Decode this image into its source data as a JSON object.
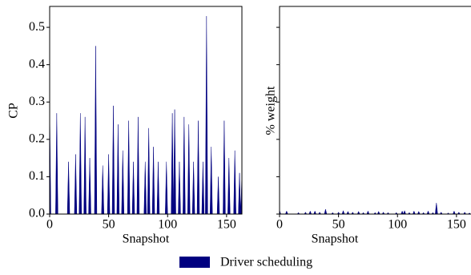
{
  "chart_data": [
    {
      "type": "area",
      "ylabel": "CP",
      "xlabel": "Snapshot",
      "x": [
        0,
        1,
        5,
        6,
        7,
        15,
        16,
        17,
        21,
        22,
        23,
        25,
        26,
        27,
        29,
        30,
        31,
        33,
        34,
        35,
        38,
        39,
        40,
        44,
        45,
        46,
        49,
        50,
        51,
        53,
        54,
        55,
        57,
        58,
        59,
        61,
        62,
        63,
        66,
        67,
        68,
        70,
        71,
        72,
        74,
        75,
        76,
        80,
        81,
        82,
        83,
        84,
        85,
        87,
        88,
        89,
        91,
        92,
        93,
        98,
        99,
        100,
        103,
        104,
        105,
        106,
        107,
        109,
        110,
        111,
        113,
        114,
        115,
        117,
        118,
        119,
        121,
        122,
        123,
        125,
        126,
        127,
        129,
        130,
        131,
        132,
        133,
        134,
        136,
        137,
        138,
        142,
        143,
        144,
        147,
        148,
        149,
        151,
        152,
        153,
        156,
        157,
        158,
        160,
        161,
        162,
        163
      ],
      "series": [
        {
          "name": "Driver scheduling",
          "color": "#000080",
          "values": [
            0.29,
            0,
            0,
            0.27,
            0,
            0,
            0.14,
            0,
            0,
            0.16,
            0,
            0,
            0.27,
            0,
            0,
            0.26,
            0,
            0,
            0.15,
            0,
            0,
            0.45,
            0,
            0,
            0.13,
            0,
            0,
            0.16,
            0,
            0,
            0.29,
            0,
            0,
            0.24,
            0,
            0,
            0.17,
            0,
            0,
            0.25,
            0,
            0,
            0.14,
            0,
            0,
            0.26,
            0,
            0,
            0.14,
            0,
            0,
            0.23,
            0,
            0,
            0.18,
            0,
            0,
            0.14,
            0,
            0,
            0.14,
            0,
            0,
            0.27,
            0,
            0.28,
            0,
            0,
            0.14,
            0,
            0,
            0.26,
            0,
            0,
            0.24,
            0,
            0,
            0.14,
            0,
            0,
            0.25,
            0,
            0,
            0.14,
            0,
            0,
            0.53,
            0,
            0,
            0.18,
            0,
            0,
            0.1,
            0,
            0,
            0.25,
            0,
            0,
            0.15,
            0,
            0,
            0.17,
            0,
            0,
            0.11,
            0,
            0.11
          ]
        }
      ],
      "xlim": [
        0,
        163
      ],
      "xticks": [
        0,
        50,
        100,
        150
      ],
      "ylim": [
        0,
        0.556
      ],
      "yticks": [
        {
          "value": 0,
          "label": "0.0"
        },
        0.1,
        0.2,
        0.3,
        0.4,
        0.5
      ]
    },
    {
      "type": "area",
      "ylabel": "% weight",
      "xlabel": "Snapshot",
      "x": [
        0,
        1,
        5,
        6,
        7,
        15,
        16,
        17,
        21,
        22,
        23,
        25,
        26,
        27,
        29,
        30,
        31,
        33,
        34,
        35,
        38,
        39,
        40,
        44,
        45,
        46,
        49,
        50,
        51,
        53,
        54,
        55,
        57,
        58,
        59,
        61,
        62,
        63,
        66,
        67,
        68,
        70,
        71,
        72,
        74,
        75,
        76,
        80,
        81,
        82,
        83,
        84,
        85,
        87,
        88,
        89,
        91,
        92,
        93,
        98,
        99,
        100,
        103,
        104,
        105,
        106,
        107,
        109,
        110,
        111,
        113,
        114,
        115,
        117,
        118,
        119,
        121,
        122,
        123,
        125,
        126,
        127,
        129,
        130,
        131,
        132,
        133,
        134,
        136,
        137,
        138,
        142,
        143,
        144,
        147,
        148,
        149,
        151,
        152,
        153,
        156,
        157,
        158,
        160,
        161,
        162,
        163
      ],
      "series": [
        {
          "color": "#000080",
          "values": [
            0.01,
            0,
            0,
            0.008,
            0,
            0,
            0.004,
            0,
            0,
            0.005,
            0,
            0,
            0.008,
            0,
            0,
            0.008,
            0,
            0,
            0.005,
            0,
            0,
            0.013,
            0,
            0,
            0.004,
            0,
            0,
            0.005,
            0,
            0,
            0.009,
            0,
            0,
            0.007,
            0,
            0,
            0.005,
            0,
            0,
            0.007,
            0,
            0,
            0.004,
            0,
            0,
            0.008,
            0,
            0,
            0.004,
            0,
            0,
            0.007,
            0,
            0,
            0.005,
            0,
            0,
            0.004,
            0,
            0,
            0.004,
            0,
            0,
            0.008,
            0,
            0.009,
            0,
            0,
            0.004,
            0,
            0,
            0.008,
            0,
            0,
            0.007,
            0,
            0,
            0.004,
            0,
            0,
            0.008,
            0,
            0,
            0.004,
            0,
            0,
            0.03,
            0,
            0,
            0.005,
            0,
            0,
            0.003,
            0,
            0,
            0.008,
            0,
            0,
            0.005,
            0,
            0,
            0.005,
            0,
            0,
            0.003,
            0,
            0.003
          ]
        }
      ],
      "xlim": [
        0,
        163
      ],
      "xticks": [
        0,
        50,
        100,
        150
      ],
      "ylim": [
        0,
        0.556
      ],
      "yticks": [
        0,
        0.1,
        0.2,
        0.3,
        0.4,
        0.5
      ]
    }
  ]
}
